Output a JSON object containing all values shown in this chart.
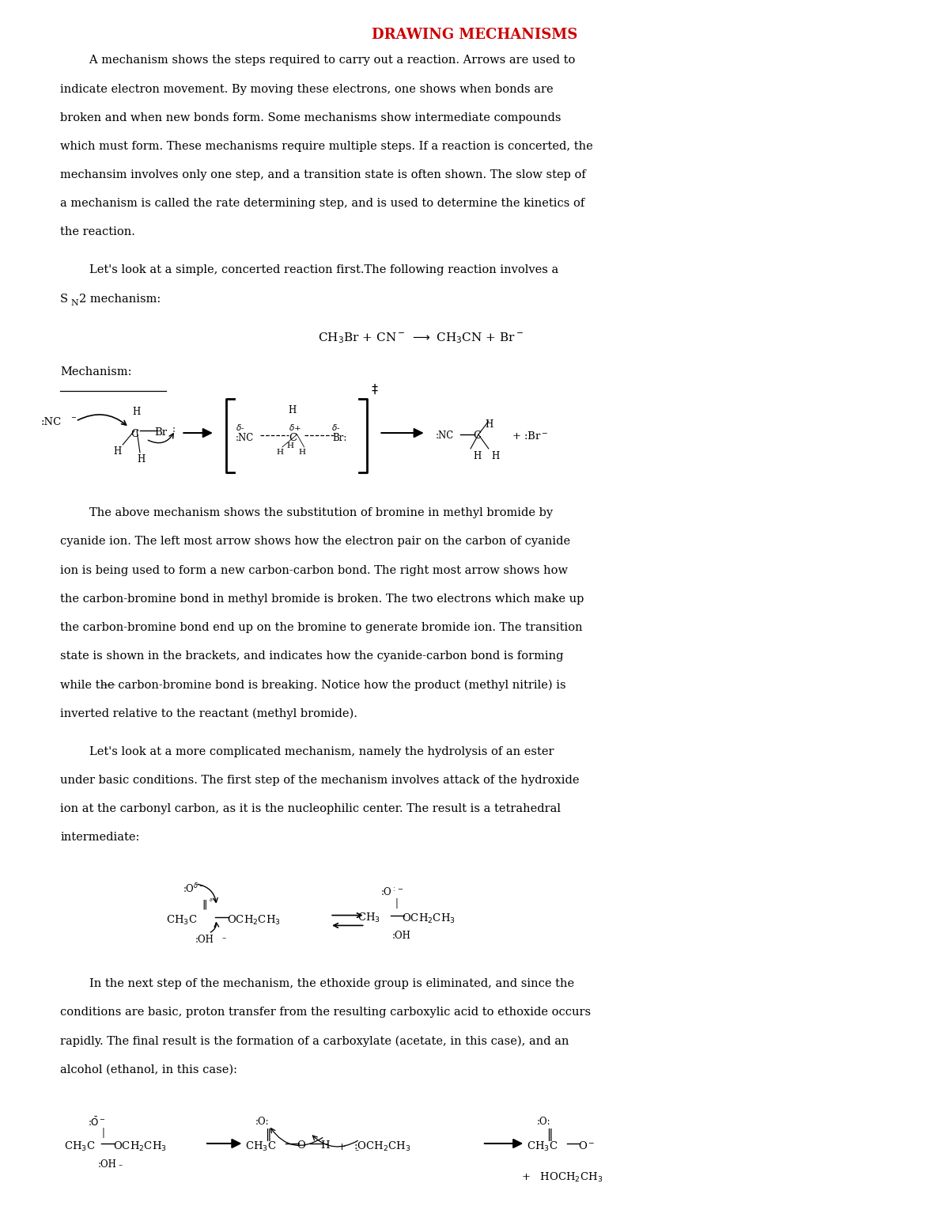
{
  "title": "DRAWING MECHANISMS",
  "title_color": "#CC0000",
  "bg_color": "#FFFFFF",
  "paragraph1": "        A mechanism shows the steps required to carry out a reaction. Arrows are used to\nindicate electron movement. By moving these electrons, one shows when bonds are\nbroken and when new bonds form. Some mechanisms show intermediate compounds\nwhich must form. These mechanisms require multiple steps. If a reaction is concerted, the\nmechansim involves only one step, and a transition state is often shown. The slow step of\na mechanism is called the rate determining step, and is used to determine the kinetics of\nthe reaction.",
  "paragraph2_line1": "        Let's look at a simple, concerted reaction first.The following reaction involves a",
  "paragraph2_line2": "2 mechanism:",
  "paragraph3": "        The above mechanism shows the substitution of bromine in methyl bromide by\ncyanide ion. The left most arrow shows how the electron pair on the carbon of cyanide\nion is being used to form a new carbon-carbon bond. The right most arrow shows how\nthe carbon-bromine bond in methyl bromide is broken. The two electrons which make up\nthe carbon-bromine bond end up on the bromine to generate bromide ion. The transition\nstate is shown in the brackets, and indicates how the cyanide-carbon bond is forming\nwhile the carbon-bromine bond is breaking. Notice how the product (methyl nitrile) is\ninverted relative to the reactant (methyl bromide).",
  "paragraph4": "        Let's look at a more complicated mechanism, namely the hydrolysis of an ester\nunder basic conditions. The first step of the mechanism involves attack of the hydroxide\nion at the carbonyl carbon, as it is the nucleophilic center. The result is a tetrahedral\nintermediate:",
  "paragraph5": "        In the next step of the mechanism, the ethoxide group is eliminated, and since the\nconditions are basic, proton transfer from the resulting carboxylic acid to ethoxide occurs\nrapidly. The final result is the formation of a carboxylate (acetate, in this case), and an\nalcohol (ethanol, in this case):"
}
